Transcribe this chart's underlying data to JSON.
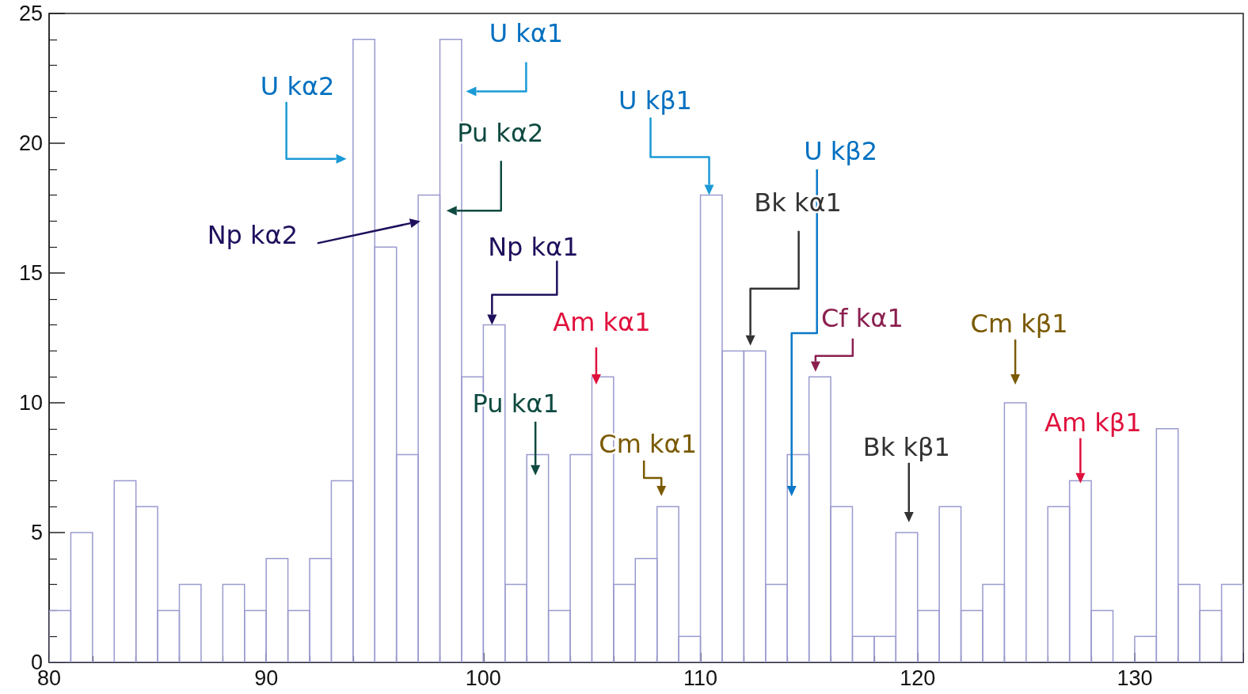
{
  "chart_data": {
    "type": "histogram",
    "bins": [
      80,
      81,
      82,
      83,
      84,
      85,
      86,
      87,
      88,
      89,
      90,
      91,
      92,
      93,
      94,
      95,
      96,
      97,
      98,
      99,
      100,
      101,
      102,
      103,
      104,
      105,
      106,
      107,
      108,
      109,
      110,
      111,
      112,
      113,
      114,
      115,
      116,
      117,
      118,
      119,
      120,
      121,
      122,
      123,
      124,
      125,
      126,
      127,
      128,
      129,
      130,
      131,
      132,
      133,
      134,
      135
    ],
    "values": [
      2,
      5,
      0,
      7,
      6,
      2,
      3,
      0,
      3,
      2,
      4,
      2,
      4,
      7,
      24,
      16,
      8,
      18,
      24,
      11,
      13,
      3,
      8,
      2,
      8,
      11,
      3,
      4,
      6,
      1,
      18,
      12,
      12,
      3,
      8,
      11,
      6,
      1,
      1,
      5,
      2,
      6,
      2,
      3,
      10,
      0,
      6,
      7,
      2,
      0,
      1,
      9,
      3,
      2,
      3
    ],
    "color": "#9a9ad0",
    "xlim": [
      80,
      135
    ],
    "xticks": [
      80,
      90,
      100,
      110,
      120,
      130
    ],
    "ylim": [
      0,
      25
    ],
    "yticks": [
      0,
      5,
      10,
      15,
      20,
      25
    ],
    "grid": false,
    "annotations": [
      "U kα2",
      "U kα1",
      "Pu kα2",
      "Np kα2",
      "Np kα1",
      "Am kα1",
      "Pu kα1",
      "Cm kα1",
      "U kβ1",
      "U kβ2",
      "Bk kα1",
      "Cf kα1",
      "Cm kβ1",
      "Bk kβ1",
      "Am kβ1"
    ]
  }
}
